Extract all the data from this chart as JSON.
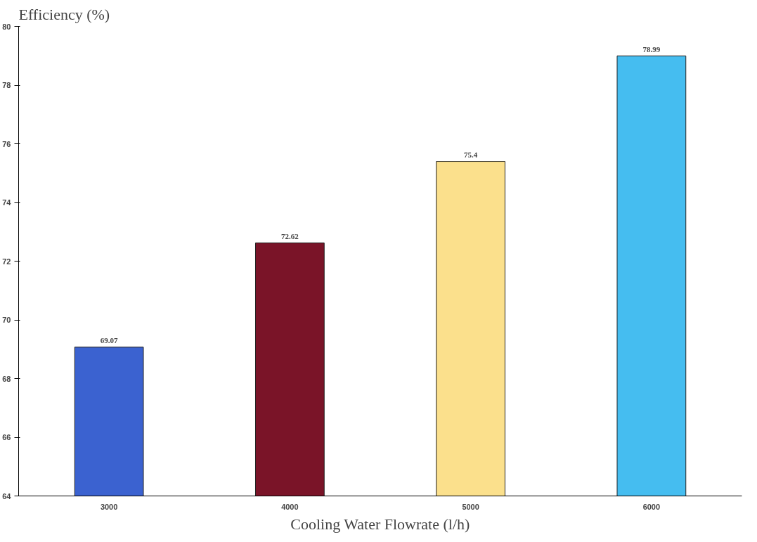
{
  "chart_data": {
    "type": "bar",
    "xlabel": "Cooling Water Flowrate (l/h)",
    "ylabel": "Efficiency (%)",
    "categories": [
      "3000",
      "4000",
      "5000",
      "6000"
    ],
    "values": [
      69.07,
      72.62,
      75.4,
      78.99
    ],
    "colors": [
      "#3b62d0",
      "#7a1428",
      "#fbe08c",
      "#45bdf0"
    ],
    "ylim": [
      64,
      80
    ],
    "yticks": [
      64,
      66,
      68,
      70,
      72,
      74,
      76,
      78,
      80
    ],
    "data_labels": true,
    "grid": false
  }
}
